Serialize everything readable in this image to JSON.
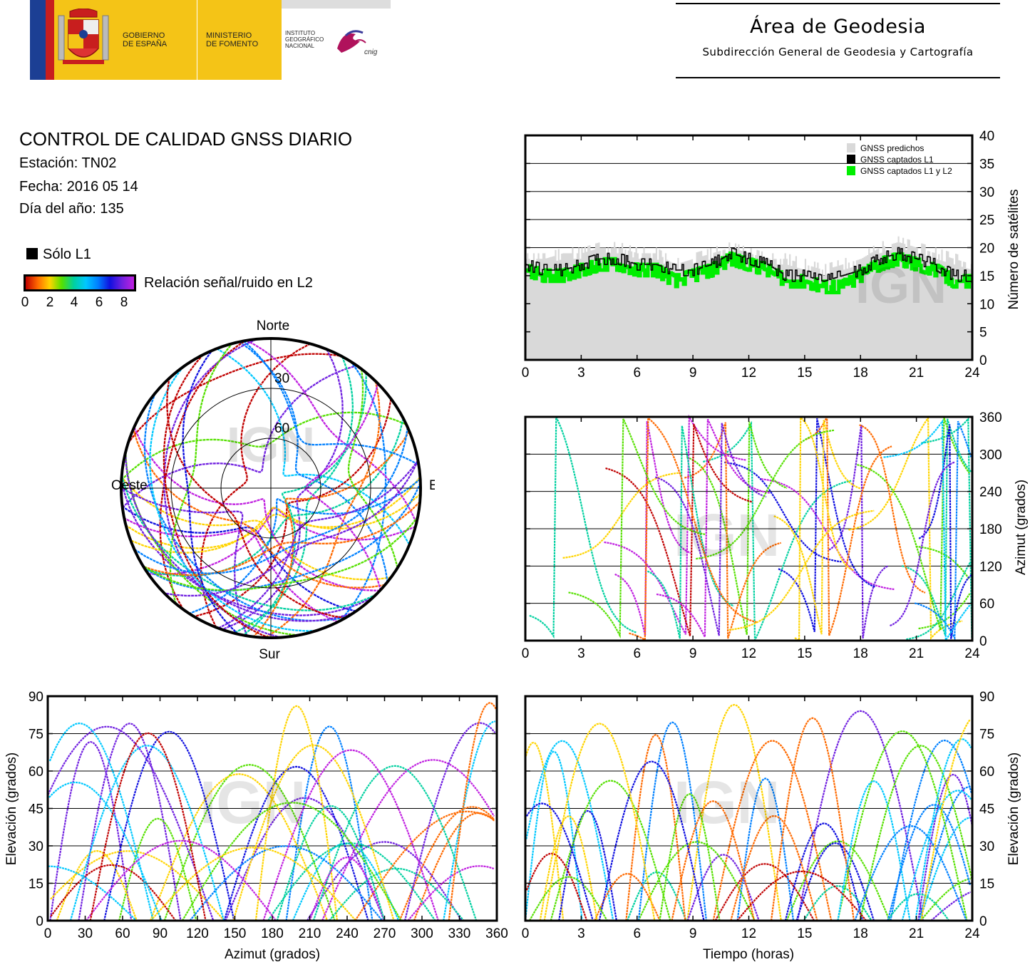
{
  "header": {
    "gov_text": [
      "GOBIERNO",
      "DE ESPAÑA"
    ],
    "ministry_text": [
      "MINISTERIO",
      "DE FOMENTO"
    ],
    "institute_text": [
      "INSTITUTO",
      "GEOGRÁFICO",
      "NACIONAL"
    ],
    "cnig_text": "cnig",
    "area_title": "Área de Geodesia",
    "area_subtitle": "Subdirección General de Geodesia y Cartografía"
  },
  "report": {
    "title": "CONTROL DE CALIDAD GNSS DIARIO",
    "station": "Estación: TN02",
    "date": "Fecha: 2016 05 14",
    "doy": "Día del año: 135"
  },
  "legend": {
    "l1_only": "Sólo L1",
    "snr_label": "Relación señal/ruido en L2",
    "snr_ticks": [
      "0",
      "2",
      "4",
      "6",
      "8"
    ]
  },
  "watermark": "IGN",
  "colors": {
    "predicted": "#d9d9d9",
    "l1": "#000000",
    "l1l2": "#00ee00",
    "snr_scale": [
      "#c00000",
      "#ff6a00",
      "#ffd400",
      "#55e000",
      "#00d0a0",
      "#00c8ff",
      "#0080ff",
      "#1010e0",
      "#7020e0",
      "#c020e0"
    ]
  },
  "chart_data": [
    {
      "id": "skyplot",
      "type": "scatter",
      "title": "",
      "directions": {
        "north": "Norte",
        "south": "Sur",
        "east": "Este",
        "west": "Oeste"
      },
      "elevation_rings": [
        "30",
        "60"
      ],
      "note_text": ""
    },
    {
      "id": "sat-count",
      "type": "area",
      "xlabel": "",
      "ylabel": "Número de satélites",
      "xlim": [
        0,
        24
      ],
      "ylim": [
        0,
        40
      ],
      "x_ticks": [
        "0",
        "3",
        "6",
        "9",
        "12",
        "15",
        "18",
        "21",
        "24"
      ],
      "y_ticks": [
        "0",
        "5",
        "10",
        "15",
        "20",
        "25",
        "30",
        "35",
        "40"
      ],
      "grid": true,
      "legend_position": "top-right",
      "series": [
        {
          "name": "GNSS predichos",
          "x": [
            0,
            1,
            2,
            3,
            4,
            5,
            6,
            7,
            8,
            9,
            10,
            11,
            12,
            13,
            14,
            15,
            16,
            17,
            18,
            19,
            20,
            21,
            22,
            23,
            24
          ],
          "values": [
            18,
            18,
            19,
            19,
            20,
            20,
            19,
            19,
            17,
            18,
            19,
            20,
            19,
            18,
            18,
            17,
            16,
            17,
            18,
            20,
            21,
            20,
            19,
            18,
            17
          ]
        },
        {
          "name": "GNSS captados L1",
          "x": [
            0,
            1,
            2,
            3,
            4,
            5,
            6,
            7,
            8,
            9,
            10,
            11,
            12,
            13,
            14,
            15,
            16,
            17,
            18,
            19,
            20,
            21,
            22,
            23,
            24
          ],
          "values": [
            17,
            16,
            16,
            17,
            18,
            18,
            17,
            17,
            16,
            16,
            17,
            19,
            18,
            17,
            15,
            15,
            14,
            15,
            16,
            18,
            19,
            18,
            17,
            15,
            15
          ]
        },
        {
          "name": "GNSS captados L1 y L2",
          "x": [
            0,
            1,
            2,
            3,
            4,
            5,
            6,
            7,
            8,
            9,
            10,
            11,
            12,
            13,
            14,
            15,
            16,
            17,
            18,
            19,
            20,
            21,
            22,
            23,
            24
          ],
          "values": [
            16,
            15,
            15,
            16,
            17,
            17,
            16,
            16,
            14,
            15,
            16,
            18,
            17,
            16,
            14,
            14,
            13,
            13,
            15,
            17,
            18,
            17,
            16,
            14,
            14
          ]
        }
      ]
    },
    {
      "id": "azimuth-time",
      "type": "scatter",
      "xlabel": "",
      "ylabel": "Azimut (grados)",
      "xlim": [
        0,
        24
      ],
      "ylim": [
        0,
        360
      ],
      "x_ticks": [
        "0",
        "3",
        "6",
        "9",
        "12",
        "15",
        "18",
        "21",
        "24"
      ],
      "y_ticks": [
        "0",
        "60",
        "120",
        "180",
        "240",
        "300",
        "360"
      ],
      "grid": true
    },
    {
      "id": "elevation-azimuth",
      "type": "scatter",
      "xlabel": "Azimut (grados)",
      "ylabel": "Elevación (grados)",
      "xlim": [
        0,
        360
      ],
      "ylim": [
        0,
        90
      ],
      "x_ticks": [
        "0",
        "30",
        "60",
        "90",
        "120",
        "150",
        "180",
        "210",
        "240",
        "270",
        "300",
        "330",
        "360"
      ],
      "y_ticks": [
        "0",
        "15",
        "30",
        "45",
        "60",
        "75",
        "90"
      ],
      "grid": true
    },
    {
      "id": "elevation-time",
      "type": "scatter",
      "xlabel": "Tiempo (horas)",
      "ylabel": "Elevación (grados)",
      "xlim": [
        0,
        24
      ],
      "ylim": [
        0,
        90
      ],
      "x_ticks": [
        "0",
        "3",
        "6",
        "9",
        "12",
        "15",
        "18",
        "21",
        "24"
      ],
      "y_ticks": [
        "0",
        "15",
        "30",
        "45",
        "60",
        "75",
        "90"
      ],
      "grid": true
    }
  ]
}
